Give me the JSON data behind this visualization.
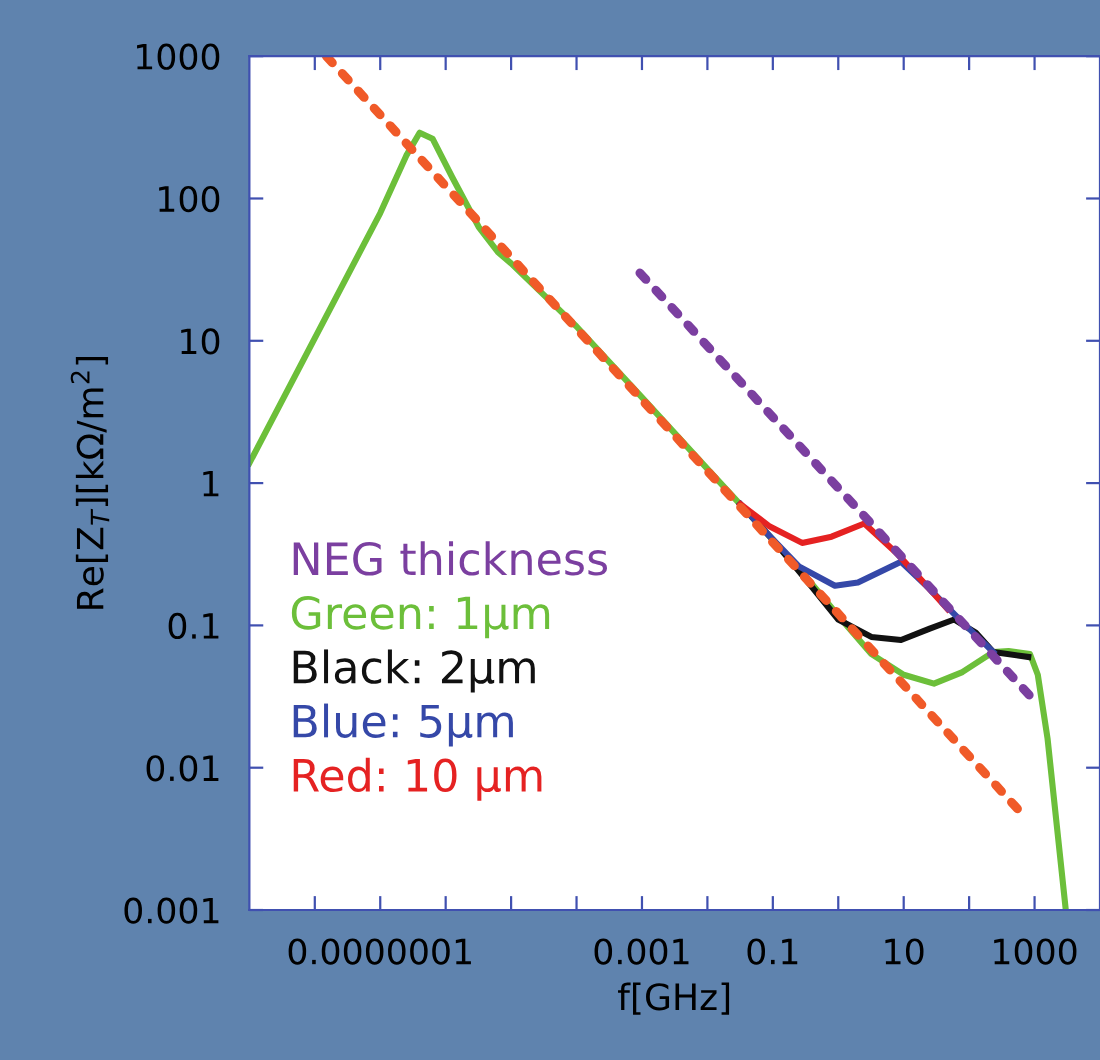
{
  "chart_data": {
    "type": "line",
    "xlabel": "f[GHz]",
    "ylabel": "Re[Z$_{T}$][kΩ/m$^{2}$]",
    "legend_title": "NEG thickness",
    "legend": "left",
    "log": "xy",
    "grid": false,
    "xlim": [
      1e-09,
      10000
    ],
    "ylim": [
      0.001,
      1000
    ],
    "xticks": [
      {
        "value": 1e-08,
        "label": null
      },
      {
        "value": 1e-07,
        "label": "0.0000001"
      },
      {
        "value": 1e-06,
        "label": null
      },
      {
        "value": 1e-05,
        "label": null
      },
      {
        "value": 0.0001,
        "label": null
      },
      0.001,
      {
        "value": 0.01,
        "label": null
      },
      0.1,
      {
        "value": 1,
        "label": null
      },
      10,
      {
        "value": 100,
        "label": null
      },
      1000
    ],
    "yticks": [
      0.001,
      0.01,
      0.1,
      1,
      10,
      100,
      1000
    ],
    "series": [
      {
        "name": "Green: 1μm",
        "color": "#6cbf3a",
        "x": [
          1e-09,
          1e-07,
          2.5e-07,
          4e-07,
          6.3e-07,
          1.26e-06,
          3.2e-06,
          6.3e-06,
          1e-05,
          0.0001,
          0.001,
          0.01,
          0.1,
          0.32,
          1,
          3.2,
          10,
          29,
          79,
          234,
          400,
          850,
          1120,
          1580,
          3000
        ],
        "values": [
          1.38,
          79,
          200,
          290,
          263,
          141,
          63,
          42,
          35,
          12.6,
          4.0,
          1.26,
          0.4,
          0.22,
          0.117,
          0.063,
          0.045,
          0.039,
          0.047,
          0.065,
          0.066,
          0.063,
          0.045,
          0.016,
          0.001
        ]
      },
      {
        "name": "Black: 2μm",
        "color": "#111111",
        "x": [
          0.032,
          0.1,
          0.32,
          1,
          3.2,
          9.1,
          25,
          59,
          126,
          234,
          800
        ],
        "values": [
          0.71,
          0.4,
          0.21,
          0.11,
          0.083,
          0.079,
          0.095,
          0.11,
          0.089,
          0.065,
          0.06
        ]
      },
      {
        "name": "Blue: 5μm",
        "color": "#3548a8",
        "x": [
          0.032,
          0.069,
          0.25,
          0.89,
          2.0,
          9.1,
          25,
          79,
          234
        ],
        "values": [
          0.71,
          0.48,
          0.26,
          0.19,
          0.2,
          0.28,
          0.18,
          0.105,
          0.065
        ]
      },
      {
        "name": "Red: 10 μm",
        "color": "#e52222",
        "x": [
          0.032,
          0.087,
          0.28,
          0.79,
          2.5,
          7.9,
          25,
          47
        ],
        "values": [
          0.71,
          0.5,
          0.38,
          0.42,
          0.52,
          0.32,
          0.18,
          0.13
        ]
      },
      {
        "color": "#f05a28",
        "line_style": "dotted",
        "x": [
          1.5e-08,
          750
        ],
        "values": [
          1000,
          0.0044
        ]
      },
      {
        "color": "#7b3fa0",
        "line_style": "dotted",
        "x": [
          0.00093,
          850
        ],
        "values": [
          30,
          0.032
        ]
      }
    ]
  }
}
